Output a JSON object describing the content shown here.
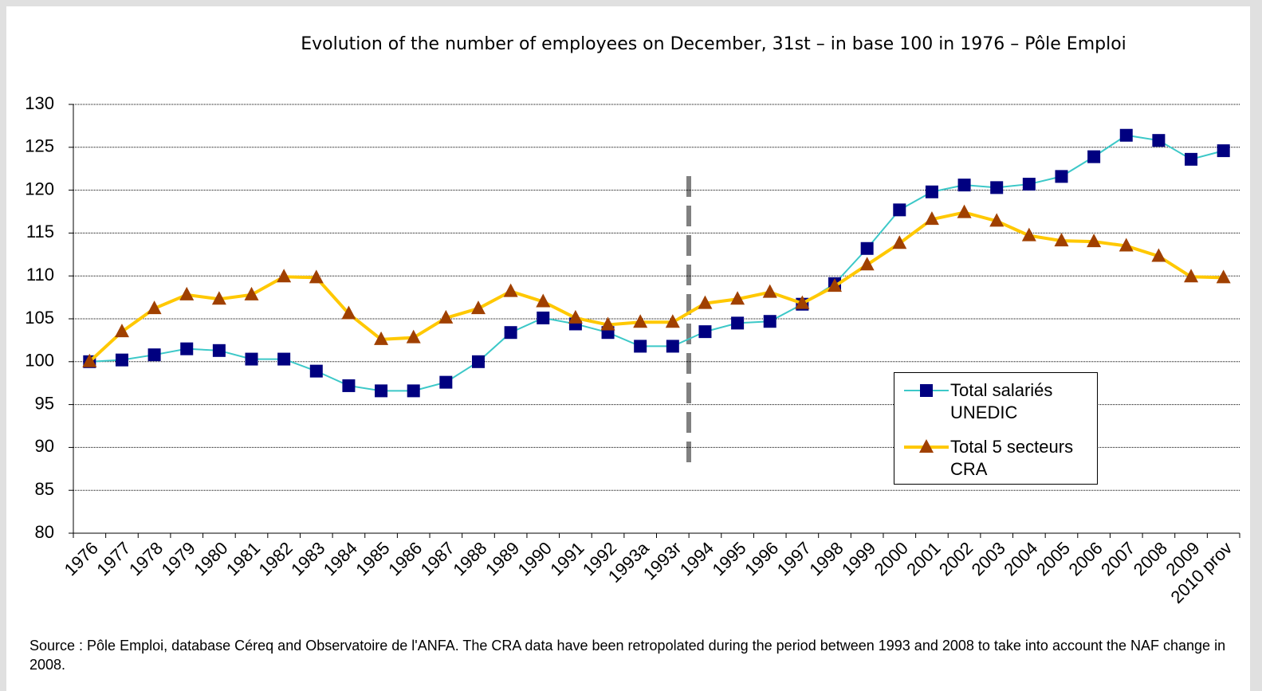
{
  "chart_data": {
    "type": "line",
    "title": "Evolution of the number of employees on December, 31st – in base 100 in 1976 – Pôle Emploi",
    "categories": [
      "1976",
      "1977",
      "1978",
      "1979",
      "1980",
      "1981",
      "1982",
      "1983",
      "1984",
      "1985",
      "1986",
      "1987",
      "1988",
      "1989",
      "1990",
      "1991",
      "1992",
      "1993a",
      "1993r",
      "1994",
      "1995",
      "1996",
      "1997",
      "1998",
      "1999",
      "2000",
      "2001",
      "2002",
      "2003",
      "2004",
      "2005",
      "2006",
      "2007",
      "2008",
      "2009",
      "2010 prov"
    ],
    "series": [
      {
        "name": "Total salariés UNEDIC",
        "color": "#3cc8c8",
        "marker_color": "#000080",
        "marker": "square",
        "values": [
          100,
          100.2,
          100.8,
          101.5,
          101.3,
          100.3,
          100.3,
          98.9,
          97.2,
          96.6,
          96.6,
          97.6,
          100,
          103.4,
          105.1,
          104.4,
          103.4,
          101.8,
          101.8,
          103.5,
          104.5,
          104.7,
          106.7,
          109.1,
          113.2,
          117.7,
          119.8,
          120.6,
          120.3,
          120.7,
          121.6,
          123.9,
          126.4,
          125.8,
          123.6,
          124.6
        ]
      },
      {
        "name": "Total 5 secteurs CRA",
        "color": "#ffc800",
        "marker_color": "#a04000",
        "marker": "triangle",
        "values": [
          100,
          103.5,
          106.2,
          107.8,
          107.3,
          107.8,
          109.9,
          109.8,
          105.6,
          102.6,
          102.8,
          105.1,
          106.2,
          108.2,
          107.0,
          105.1,
          104.3,
          104.6,
          104.6,
          106.8,
          107.3,
          108.1,
          106.8,
          108.8,
          111.3,
          113.8,
          116.6,
          117.4,
          116.4,
          114.7,
          114.1,
          114.0,
          113.5,
          112.3,
          109.9,
          109.8
        ]
      }
    ],
    "ylim": [
      80,
      130
    ],
    "yticks": [
      80,
      85,
      90,
      95,
      100,
      105,
      110,
      115,
      120,
      125,
      130
    ],
    "grid": true,
    "source": "Source : Pôle Emploi, database Céreq and Observatoire de l'ANFA. The CRA data have been retropolated during the period between 1993 and 2008 to take into account the NAF change in 2008."
  }
}
